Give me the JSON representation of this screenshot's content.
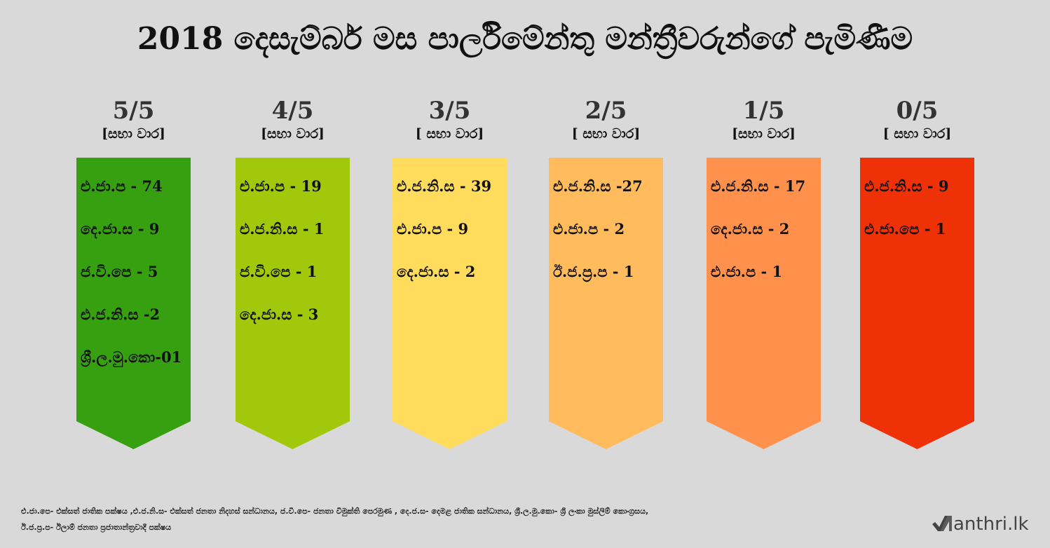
{
  "title": "2018 දෙසැම්බර් මස පාර්ලිමේන්තු මන්ත්‍රීවරුන්ගේ පැමිණීම",
  "columns": [
    {
      "score": "5/5",
      "sub": "[සභා වාර]",
      "color": "#36a010",
      "entries": [
        "එ.ජා.ප - 74",
        "දෙ.ජා.ස  - 9",
        "ජ.වි.පෙ - 5",
        "එ.ජ.නි.ස -2",
        "ශ්‍රී.ල.මු.කො-01"
      ]
    },
    {
      "score": "4/5",
      "sub": "[සභා වාර]",
      "color": "#a2c80c",
      "entries": [
        "එ.ජා.ප - 19",
        "එ.ජ.නි.ස - 1",
        "ජ.වි.පෙ - 1",
        "දෙ.ජා.ස  - 3"
      ]
    },
    {
      "score": "3/5",
      "sub": "[ සභා වාර]",
      "color": "#ffdc5b",
      "entries": [
        "එ.ජ.නි.ස - 39",
        "එ.ජා.ප - 9",
        "දෙ.ජා.ස  - 2"
      ]
    },
    {
      "score": "2/5",
      "sub": "[ සභා වාර]",
      "color": "#ffbb5c",
      "entries": [
        "එ.ජ.නි.ස -27",
        "එ.ජා.ප - 2",
        "ඊ.ජ.ප්‍ර.ප - 1"
      ]
    },
    {
      "score": "1/5",
      "sub": "[සභා වාර]",
      "color": "#ff914d",
      "entries": [
        "එ.ජ.නි.ස - 17",
        "දෙ.ජා.ස  - 2",
        "එ.ජා.ප - 1"
      ]
    },
    {
      "score": "0/5",
      "sub": "[ සභා වාර]",
      "color": "#ee3107",
      "entries": [
        "එ.ජ.නි.ස - 9",
        "එ.ජා.පෙ - 1"
      ]
    }
  ],
  "footnote": {
    "line1": "එ.ජා.පෙ- එක්සත් ජාතික පක්ෂය ,එ.ජ.නි.ස- එක්සත් ජනතා නිදහස් සන්ධානය, ජ.වි.පෙ- ජනතා විමුක්ති පෙරමුණ , දෙ.ජ.ස- දෙමළ ජාතික සන්ධානය, ශ්‍රී.ල.මු.කො- ශ්‍රී ලංකා මුස්ලිම් කොංග්‍රසය,",
    "line2": "ඊ.ජ.ප්‍ර.ප- ඊලාම් ජනතා ප්‍රජාතාන්ත්‍රවාදී පක්ෂය"
  },
  "logo": {
    "text": "anthri.lk",
    "icon": "manthri-check-logo-icon"
  }
}
